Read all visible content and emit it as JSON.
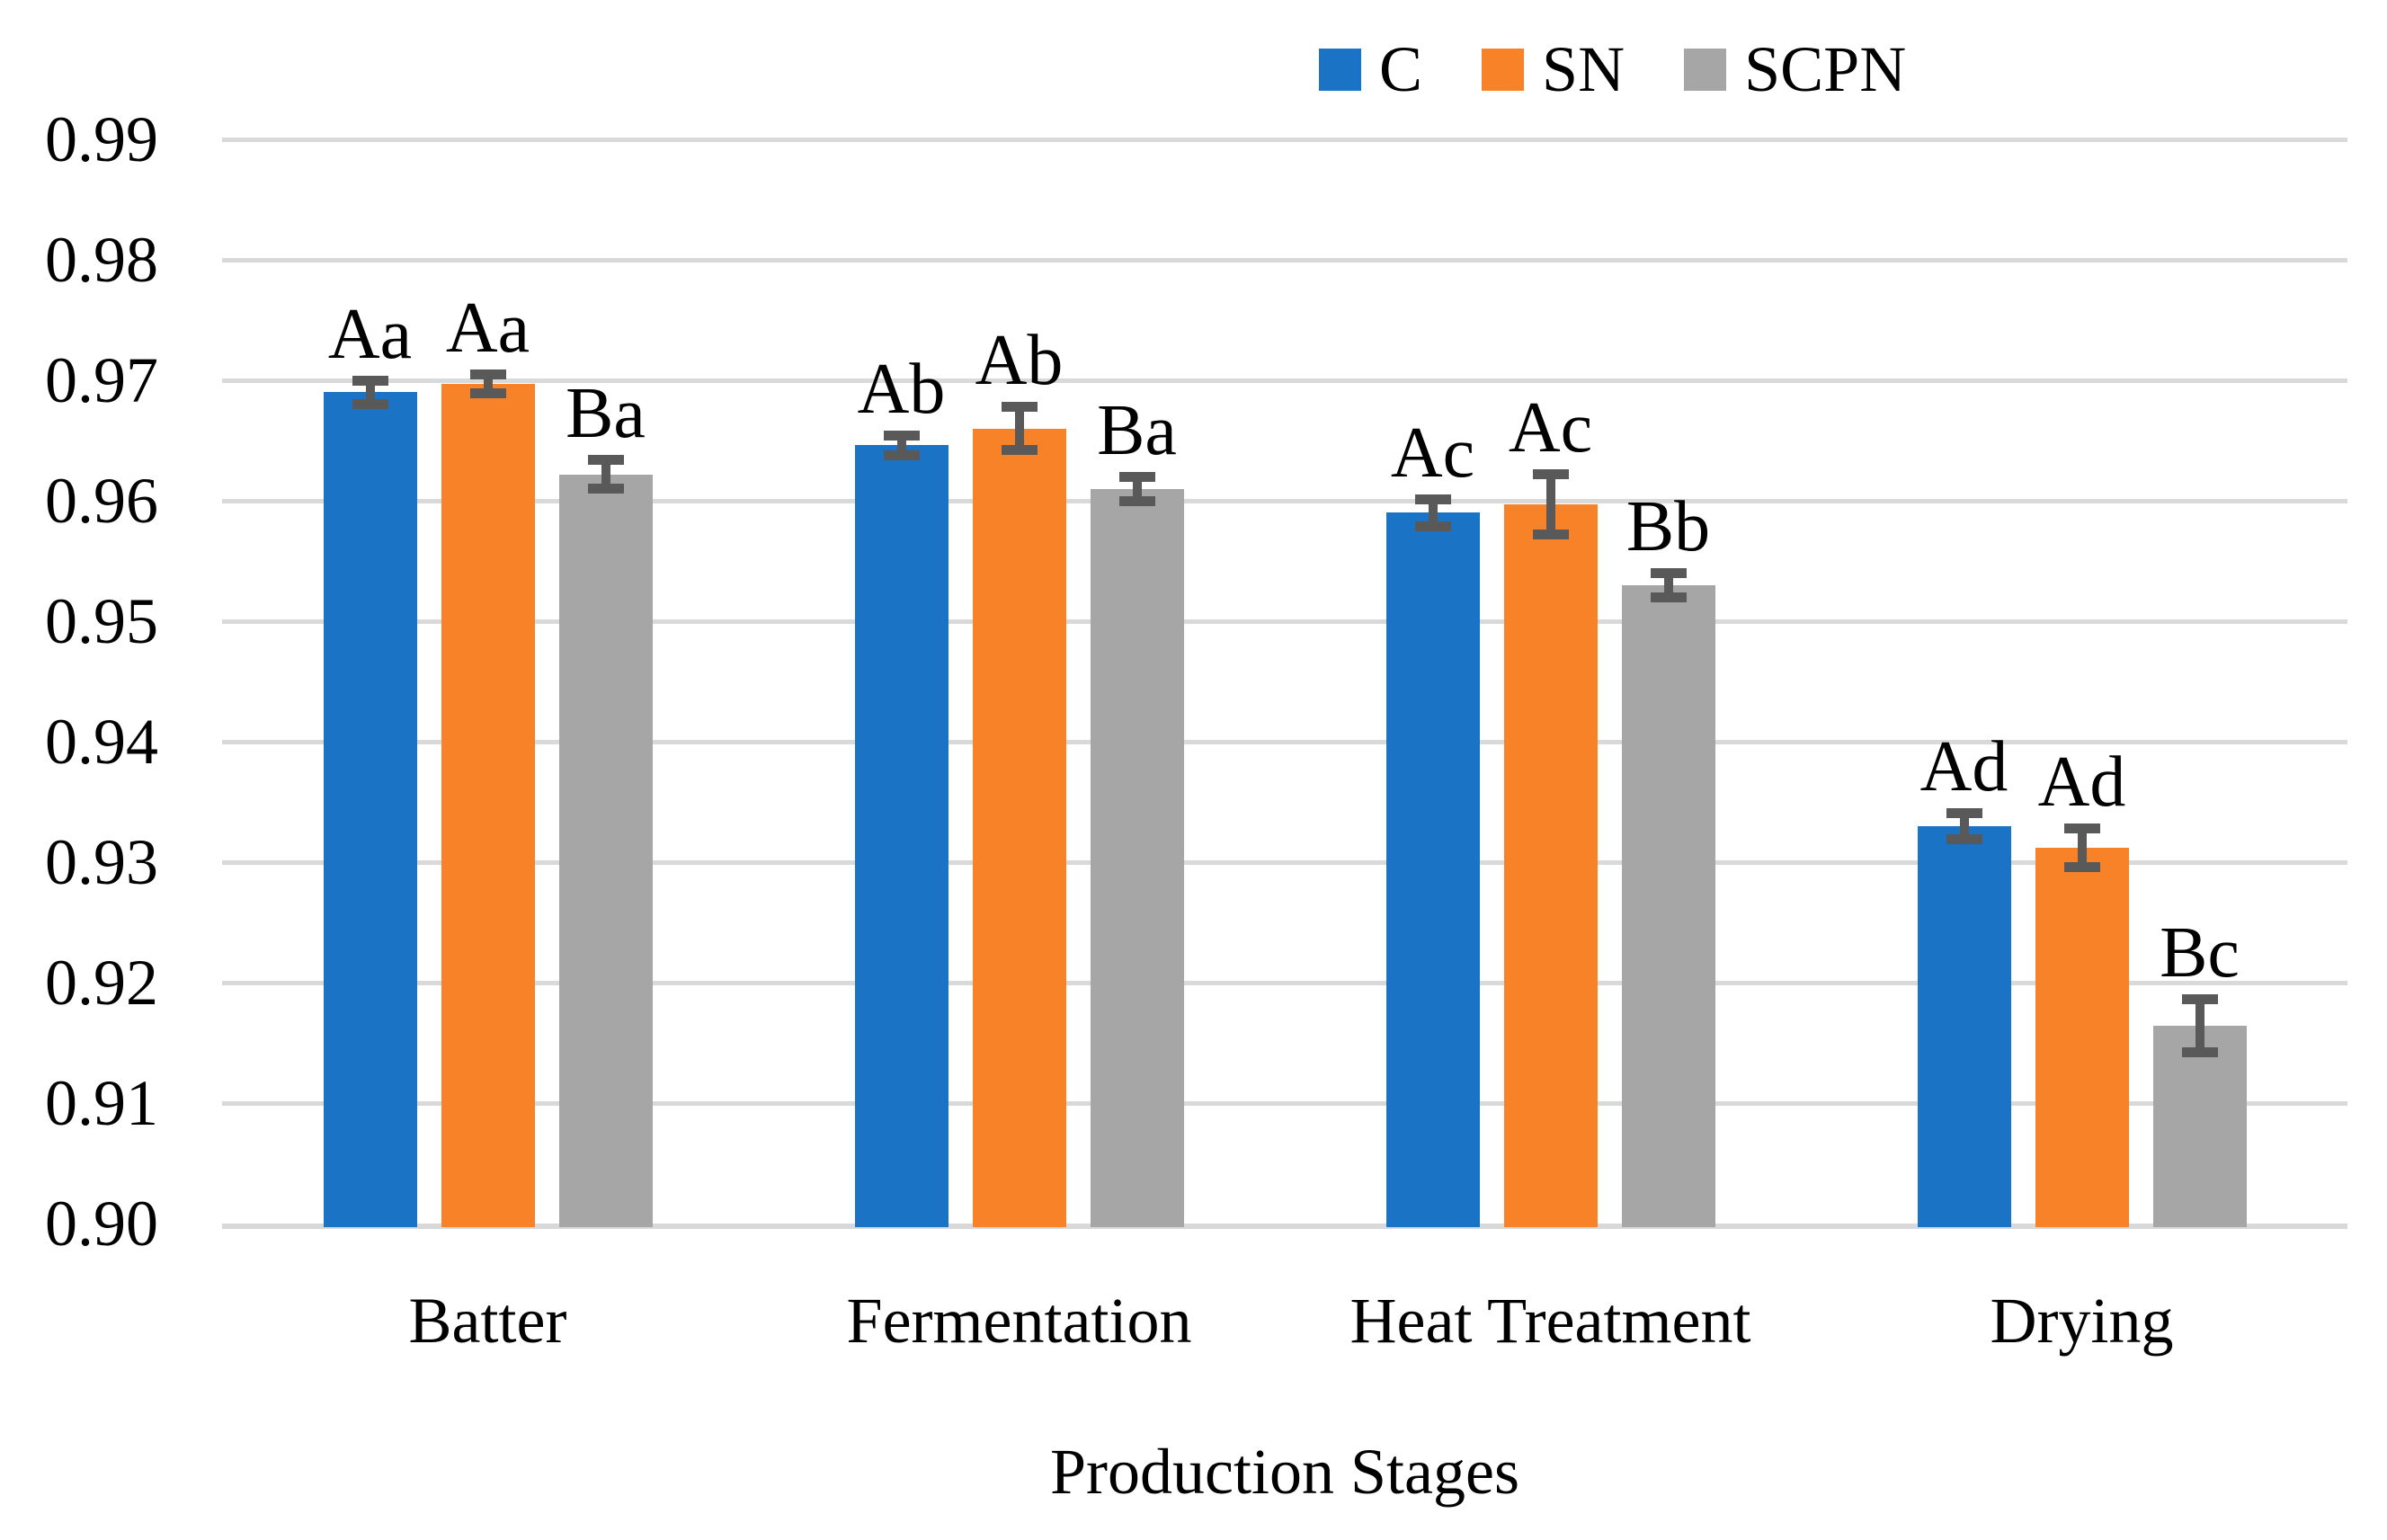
{
  "chart_data": {
    "type": "bar",
    "title": "",
    "xlabel": "Production Stages",
    "ylabel": "",
    "ylim": [
      0.9,
      0.99
    ],
    "ytick_step": 0.01,
    "ytick_labels": [
      "0.99",
      "0.98",
      "0.97",
      "0.96",
      "0.95",
      "0.94",
      "0.93",
      "0.92",
      "0.91",
      "0.90"
    ],
    "grid": "horizontal",
    "gridline_color": "#D9D9D9",
    "error_bar_color": "#595959",
    "legend_position": "top",
    "categories": [
      "Batter",
      "Fermentation",
      "Heat Treatment",
      "Drying"
    ],
    "series": [
      {
        "name": "C",
        "color": "#1A73C4",
        "values": [
          0.969,
          0.9646,
          0.959,
          0.933
        ],
        "errors": [
          0.001,
          0.0008,
          0.0011,
          0.0011
        ],
        "sig_labels": [
          "Aa",
          "Ab",
          "Ac",
          "Ad"
        ]
      },
      {
        "name": "SN",
        "color": "#F88228",
        "values": [
          0.9697,
          0.966,
          0.9597,
          0.9312
        ],
        "errors": [
          0.0008,
          0.0018,
          0.0025,
          0.0016
        ],
        "sig_labels": [
          "Aa",
          "Ab",
          "Ac",
          "Ad"
        ]
      },
      {
        "name": "SCPN",
        "color": "#A6A6A6",
        "values": [
          0.9622,
          0.961,
          0.953,
          0.9164
        ],
        "errors": [
          0.0012,
          0.001,
          0.001,
          0.0022
        ],
        "sig_labels": [
          "Ba",
          "Ba",
          "Bb",
          "Bc"
        ]
      }
    ]
  }
}
